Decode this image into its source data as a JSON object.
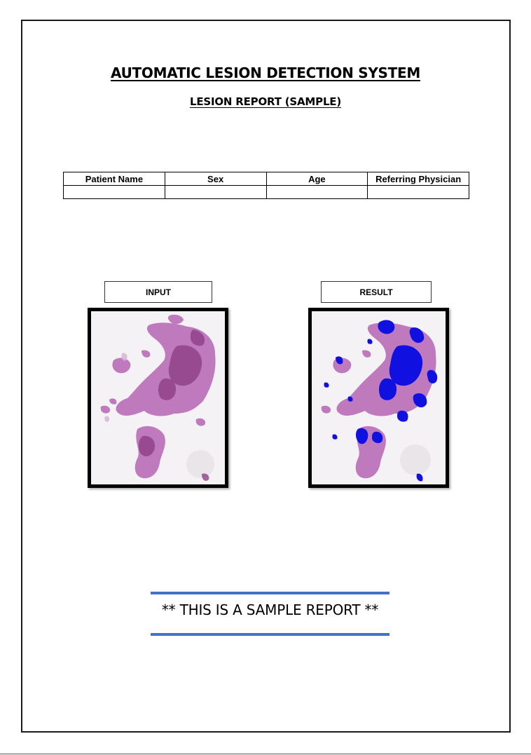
{
  "report": {
    "title": "AUTOMATIC LESION DETECTION SYSTEM",
    "subtitle": "LESION REPORT (SAMPLE)"
  },
  "patient_table": {
    "headers": [
      "Patient Name",
      "Sex",
      "Age",
      "Referring Physician"
    ],
    "values": [
      "",
      "",
      "",
      ""
    ]
  },
  "images": {
    "input_label": "INPUT",
    "result_label": "RESULT"
  },
  "footer": {
    "notice": "** THIS IS A SAMPLE REPORT **"
  },
  "colors": {
    "tissue": "#b565b3",
    "tissue_dark": "#8e3f86",
    "lesion_overlay": "#1010e0",
    "rule_blue": "#4472c4"
  }
}
